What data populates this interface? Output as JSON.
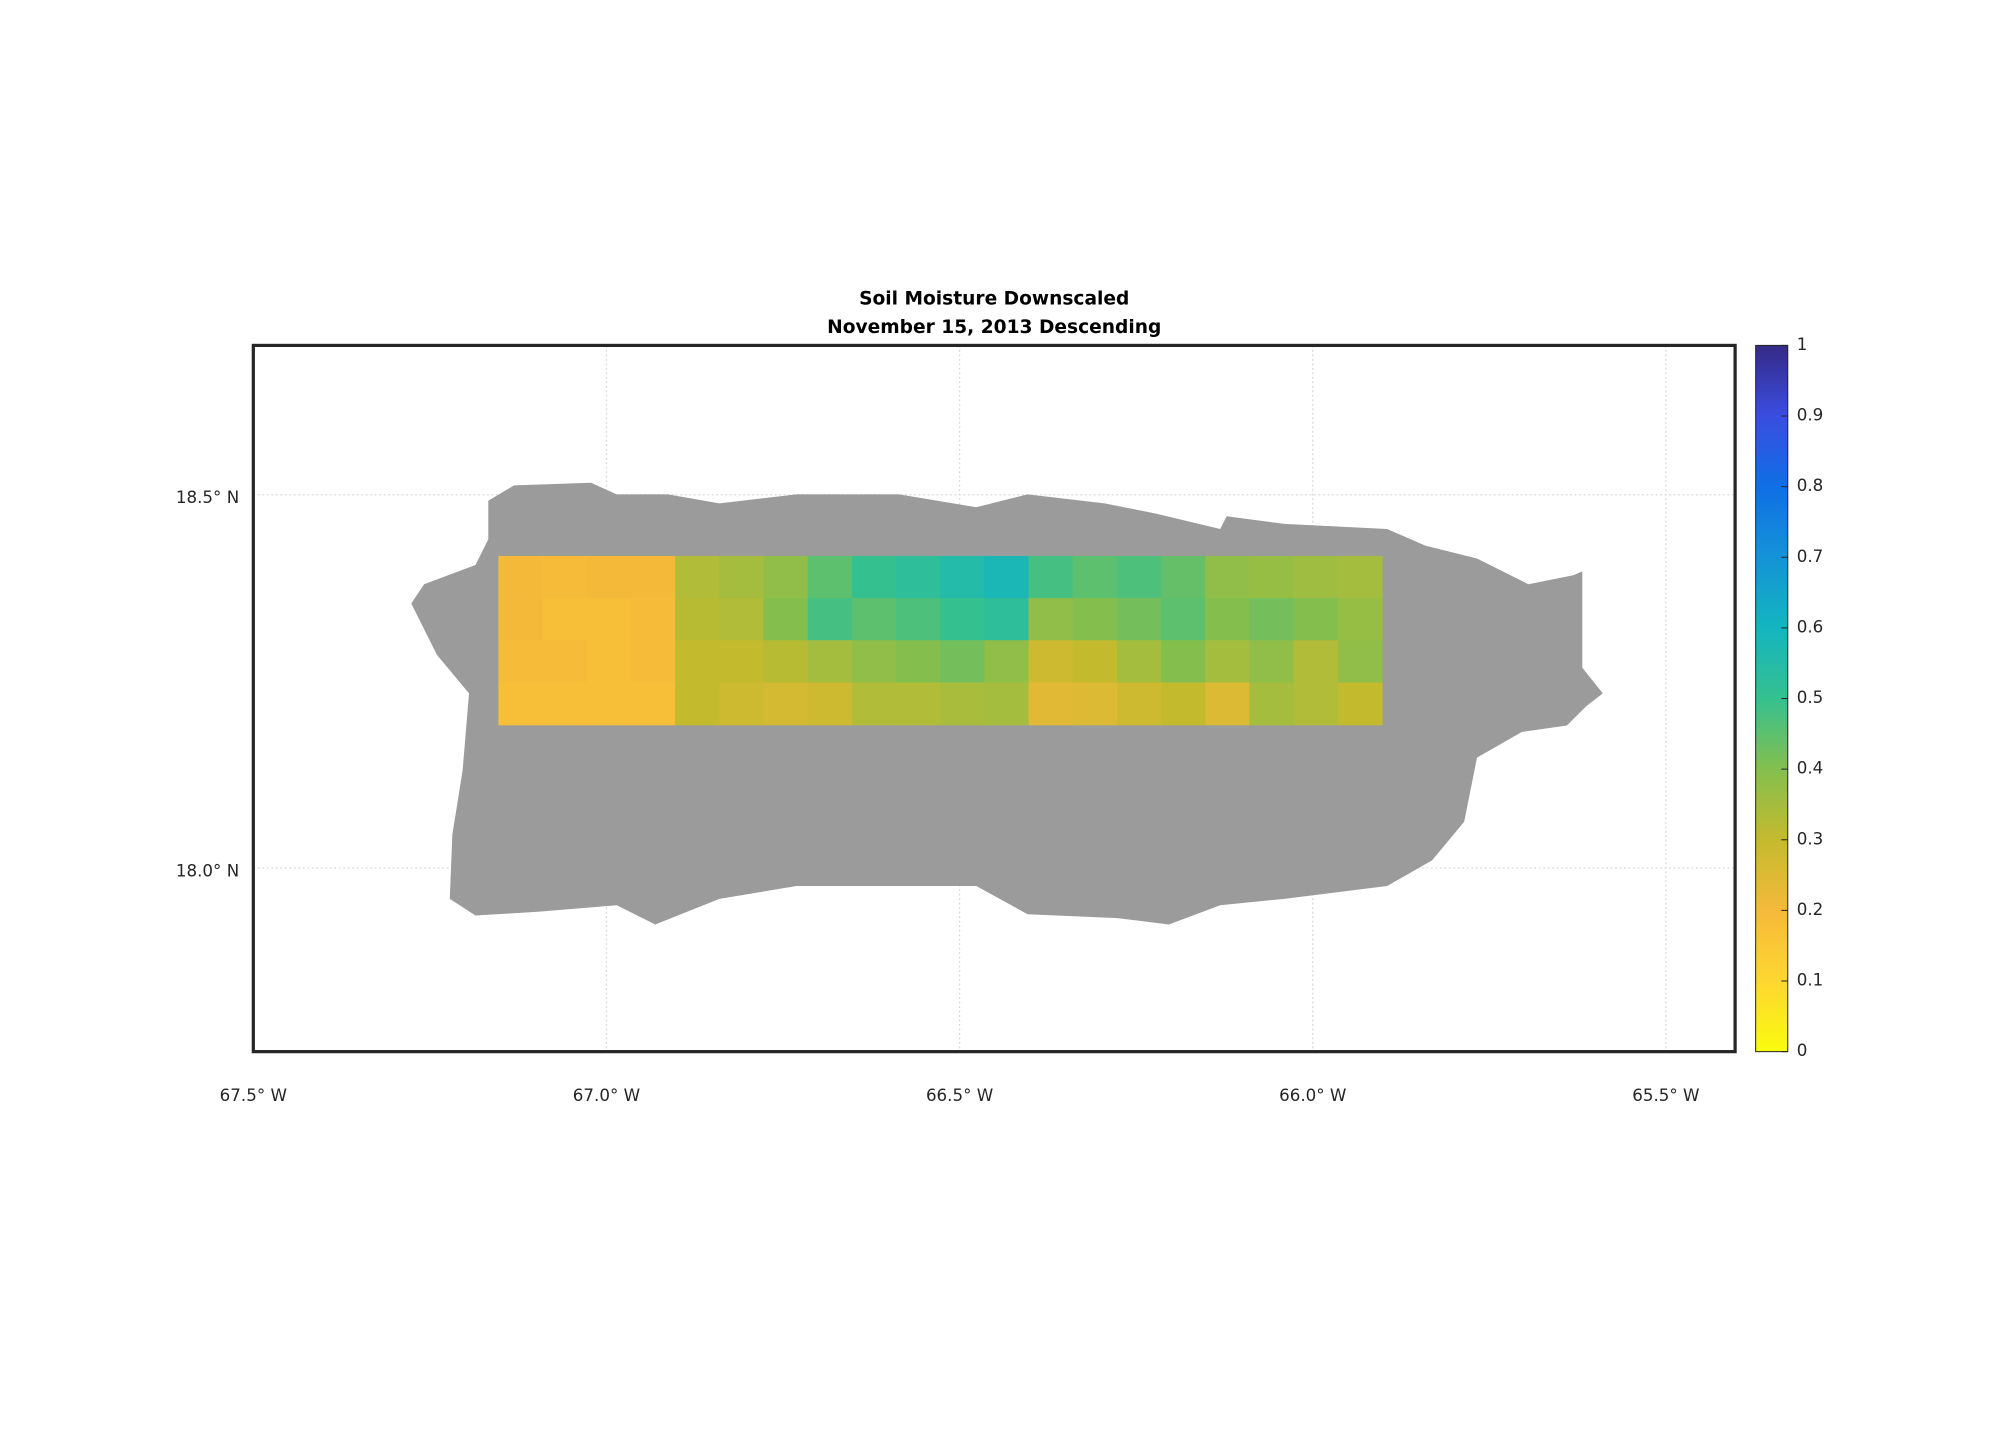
{
  "chart_data": {
    "type": "heatmap",
    "title": "Soil Moisture Downscaled",
    "subtitle": "November 15, 2013 Descending",
    "xlim": [
      -67.5,
      -65.402
    ],
    "ylim": [
      17.754,
      18.7
    ],
    "xticks": [
      {
        "value": -67.5,
        "label": "67.5° W"
      },
      {
        "value": -67.0,
        "label": "67.0° W"
      },
      {
        "value": -66.5,
        "label": "66.5° W"
      },
      {
        "value": -66.0,
        "label": "66.0° W"
      },
      {
        "value": -65.5,
        "label": "65.5° W"
      }
    ],
    "yticks": [
      {
        "value": 18.0,
        "label": "18.0° N"
      },
      {
        "value": 18.5,
        "label": "18.5° N"
      }
    ],
    "grid": true,
    "lon_range": [
      -67.153,
      -65.902
    ],
    "lat_range": [
      18.418,
      18.192
    ],
    "z": [
      [
        0.2,
        0.19,
        0.2,
        0.2,
        0.33,
        0.35,
        0.38,
        0.45,
        0.5,
        0.52,
        0.55,
        0.58,
        0.48,
        0.45,
        0.47,
        0.44,
        0.38,
        0.37,
        0.36,
        0.35
      ],
      [
        0.2,
        0.18,
        0.18,
        0.19,
        0.32,
        0.33,
        0.4,
        0.48,
        0.45,
        0.47,
        0.5,
        0.52,
        0.38,
        0.4,
        0.42,
        0.45,
        0.4,
        0.42,
        0.4,
        0.37
      ],
      [
        0.19,
        0.19,
        0.18,
        0.19,
        0.3,
        0.3,
        0.32,
        0.35,
        0.38,
        0.4,
        0.42,
        0.38,
        0.28,
        0.3,
        0.35,
        0.4,
        0.35,
        0.38,
        0.33,
        0.38
      ],
      [
        0.18,
        0.18,
        0.18,
        0.18,
        0.3,
        0.28,
        0.27,
        0.28,
        0.33,
        0.33,
        0.34,
        0.35,
        0.24,
        0.25,
        0.28,
        0.3,
        0.25,
        0.35,
        0.33,
        0.3
      ]
    ],
    "clim": [
      0,
      1
    ],
    "cticks": [
      0,
      0.1,
      0.2,
      0.3,
      0.4,
      0.5,
      0.6,
      0.7,
      0.8,
      0.9,
      1
    ],
    "colormap": [
      "#f9fb0e",
      "#fed631",
      "#f5b93a",
      "#c4ba2e",
      "#84bf4e",
      "#35c08f",
      "#13b5c0",
      "#1493d8",
      "#0f6fe5",
      "#3a4de0",
      "#352a87"
    ],
    "land_color": "#9b9b9b"
  }
}
